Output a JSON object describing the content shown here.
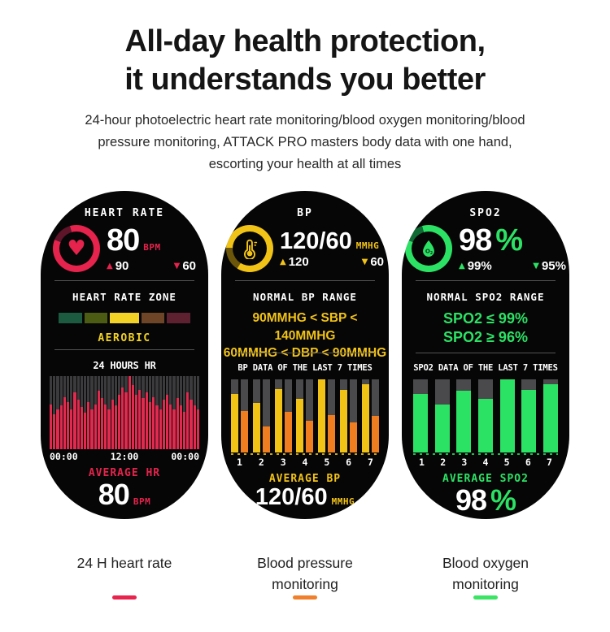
{
  "header": {
    "title_line1": "All-day health protection,",
    "title_line2": "it understands you better",
    "subtitle_lines": [
      "24-hour photoelectric heart rate monitoring/blood oxygen monitoring/blood",
      "pressure monitoring, ATTACK PRO masters body data with one hand,",
      "escorting your health at all times"
    ]
  },
  "icons": {
    "up_triangle": "▲",
    "down_triangle": "▼",
    "heart": "♥"
  },
  "colors": {
    "red": "#E5234C",
    "yellow": "#F2C317",
    "orange": "#F07E20",
    "green": "#2CE265",
    "watch_bg": "#060607",
    "track_gray": "#4A4A4D",
    "hr_track_gray": "#3B3B3D"
  },
  "watches": {
    "heart_rate": {
      "title": "HEART RATE",
      "value": "80",
      "unit": "BPM",
      "high": "90",
      "low": "60",
      "zone_title": "HEART RATE ZONE",
      "zone_label": "AEROBIC",
      "zone_colors": [
        "#1D5B41",
        "#4C5C13",
        "#F2D224",
        "#6F4528",
        "#5E2130"
      ],
      "chart_title": "24 HOURS HR",
      "avg_label": "AVERAGE HR",
      "avg_value": "80",
      "avg_unit": "BPM"
    },
    "bp": {
      "title": "BP",
      "value": "120/60",
      "unit": "MMHG",
      "high": "120",
      "low": "60",
      "range_title": "NORMAL BP RANGE",
      "range_line1": "90MMHG < SBP < 140MMHG",
      "range_line2": "60MMHG < DBP < 90MMHG",
      "chart_title": "BP DATA OF THE LAST 7 TIMES",
      "avg_label": "AVERAGE BP",
      "avg_value": "120/60",
      "avg_unit": "MMHG"
    },
    "spo2": {
      "title": "SPO2",
      "value": "98",
      "value_suffix": "%",
      "high": "99%",
      "low": "95%",
      "range_title": "NORMAL SPO2 RANGE",
      "range_line1": "SPO2 ≤ 99%",
      "range_line2": "SPO2 ≥ 96%",
      "chart_title": "SPO2 DATA OF THE LAST 7 TIMES",
      "avg_label": "AVERAGE SPO2",
      "avg_value": "98",
      "avg_suffix": "%"
    }
  },
  "chart_data": [
    {
      "type": "bar",
      "title": "24 HOURS HR",
      "x_labels": [
        "00:00",
        "12:00",
        "00:00"
      ],
      "values_pct": [
        62,
        48,
        55,
        60,
        72,
        65,
        55,
        78,
        68,
        58,
        50,
        65,
        55,
        62,
        80,
        70,
        62,
        55,
        68,
        60,
        75,
        85,
        78,
        100,
        88,
        75,
        82,
        70,
        78,
        65,
        72,
        60,
        55,
        68,
        75,
        62,
        55,
        70,
        60,
        52,
        78,
        68,
        60,
        55
      ],
      "bar_color": "#E02B4F",
      "track_color": "#3B3B3D",
      "ylim_note": "percent of chart height, 24h heart-rate histogram"
    },
    {
      "type": "bar",
      "title": "BP DATA OF THE LAST 7 TIMES",
      "categories": [
        "1",
        "2",
        "3",
        "4",
        "5",
        "6",
        "7"
      ],
      "series": [
        {
          "name": "SBP",
          "color": "#F2C317",
          "values_pct": [
            80,
            68,
            87,
            74,
            100,
            86,
            94
          ]
        },
        {
          "name": "DBP",
          "color": "#F07E20",
          "values_pct": [
            57,
            36,
            56,
            44,
            51,
            42,
            50
          ]
        }
      ],
      "track_color": "#4A4A4D"
    },
    {
      "type": "bar",
      "title": "SPO2 DATA OF THE LAST 7 TIMES",
      "categories": [
        "1",
        "2",
        "3",
        "4",
        "5",
        "6",
        "7"
      ],
      "values_pct": [
        80,
        66,
        85,
        74,
        100,
        86,
        94
      ],
      "bar_color": "#2CE265",
      "track_color": "#4A4A4D"
    }
  ],
  "captions": [
    {
      "label": "24 H heart rate",
      "color": "#E8234E"
    },
    {
      "label": "Blood pressure monitoring",
      "color": "#F0802B"
    },
    {
      "label": "Blood oxygen monitoring",
      "color": "#3CE464"
    }
  ]
}
